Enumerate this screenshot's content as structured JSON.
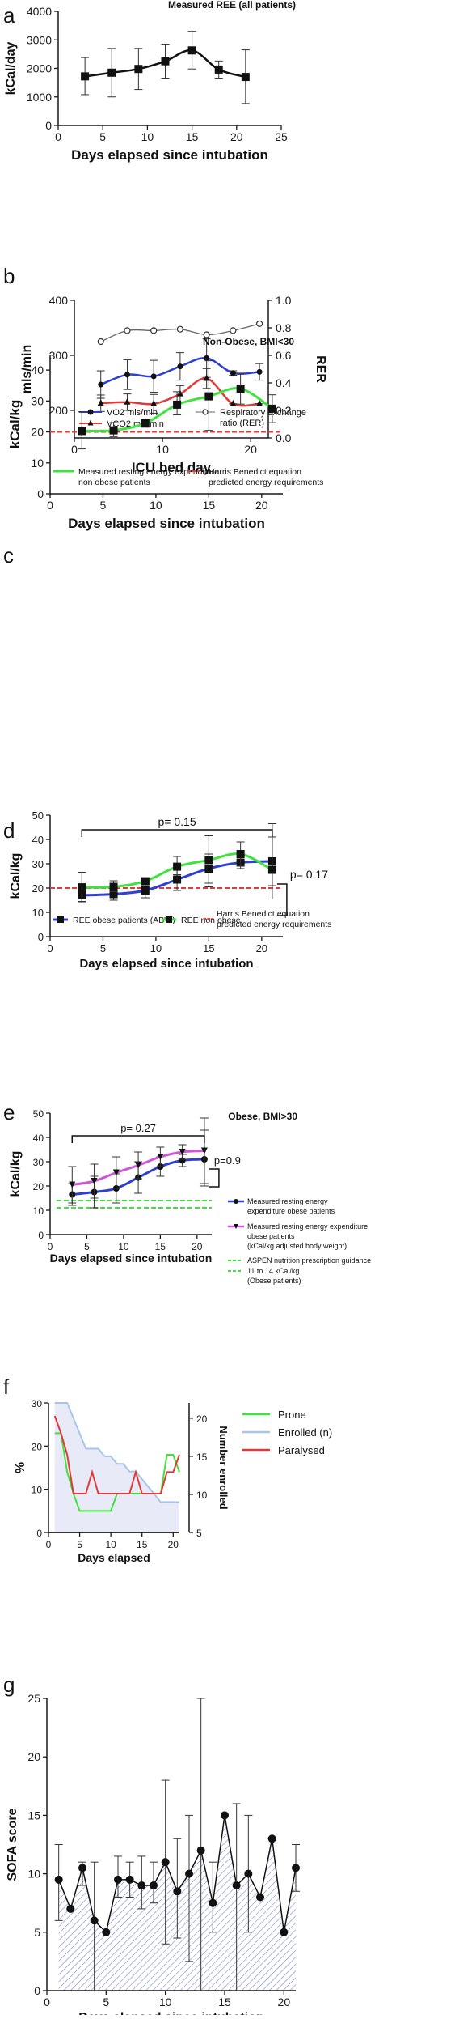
{
  "colors": {
    "black": "#1a1a1a",
    "blue": "#2f3fcf",
    "red": "#e03a3a",
    "green": "#3fe23f",
    "magenta": "#cf56d9",
    "gray": "#666666",
    "lightblue": "#a9c4ea",
    "fill": "#e8ebf7",
    "hatch": "#7d86c9"
  },
  "chart_data": [
    {
      "panel": "a",
      "type": "line",
      "title": "Measured REE (all patients)",
      "xlabel": "Days elapsed since intubation",
      "ylabel": "kCal/day",
      "xlim": [
        0,
        25
      ],
      "ylim": [
        0,
        4000
      ],
      "xticks": [
        "0",
        "5",
        "10",
        "15",
        "20",
        "25"
      ],
      "yticks": [
        "0",
        "1000",
        "2000",
        "3000",
        "4000"
      ],
      "series": [
        {
          "x": [
            3,
            6,
            9,
            12,
            15,
            18,
            21
          ],
          "values": [
            1720,
            1850,
            1980,
            2250,
            2630,
            1960,
            1700
          ],
          "err_low": [
            1080,
            1000,
            1260,
            1660,
            1980,
            1660,
            770
          ],
          "err_high": [
            2380,
            2700,
            2700,
            2850,
            3300,
            2260,
            2650
          ]
        }
      ]
    },
    {
      "panel": "b",
      "type": "line",
      "title": "",
      "xlabel": "ICU bed day",
      "ylabel": "mls/min",
      "y2label": "RER",
      "xlim": [
        0,
        22
      ],
      "ylim": [
        150,
        400
      ],
      "y2lim": [
        0.0,
        1.0
      ],
      "xticks": [
        "0",
        "10",
        "20"
      ],
      "yticks": [
        "200",
        "300",
        "400"
      ],
      "y2ticks": [
        "0.0",
        "0.2",
        "0.4",
        "0.6",
        "0.8",
        "1.0"
      ],
      "legend": [
        "VO2 mls/min",
        "VCO2 mls/min",
        "Respiratory exchange ratio (RER)"
      ],
      "series": [
        {
          "name": "VO2 mls/min",
          "x": [
            3,
            6,
            9,
            12,
            15,
            18,
            21
          ],
          "values": [
            247,
            265,
            262,
            280,
            295,
            268,
            270
          ],
          "err_low": [
            222,
            238,
            233,
            255,
            260,
            264,
            255
          ],
          "err_high": [
            272,
            292,
            291,
            305,
            330,
            272,
            285
          ]
        },
        {
          "name": "VCO2 mls/min",
          "x": [
            3,
            6,
            9,
            12,
            15,
            18,
            21
          ],
          "values": [
            213,
            215,
            212,
            230,
            258,
            212,
            212
          ],
          "err_low": [
            198,
            200,
            195,
            215,
            240,
            212,
            212
          ],
          "err_high": [
            228,
            230,
            229,
            245,
            276,
            212,
            212
          ]
        },
        {
          "name": "Respiratory exchange ratio (RER)",
          "x": [
            3,
            6,
            9,
            12,
            15,
            18,
            21
          ],
          "values": [
            0.7,
            0.78,
            0.78,
            0.79,
            0.75,
            0.78,
            0.83
          ]
        }
      ]
    },
    {
      "panel": "c",
      "type": "line",
      "title": "Non-Obese, BMI<30",
      "xlabel": "Days elapsed since intubation",
      "ylabel": "kCal/kg",
      "xlim": [
        0,
        22
      ],
      "ylim": [
        0,
        45
      ],
      "xticks": [
        "0",
        "5",
        "10",
        "15",
        "20"
      ],
      "yticks": [
        "0",
        "10",
        "20",
        "30",
        "40"
      ],
      "legend": [
        "Measured resting energy expenditure non obese patients",
        "Harris Benedict equation predicted energy requirements"
      ],
      "reference_line": 20,
      "series": [
        {
          "name": "Measured resting energy expenditure non obese patients",
          "x": [
            3,
            6,
            9,
            12,
            15,
            18,
            21
          ],
          "values": [
            20.3,
            20.5,
            22.8,
            28.8,
            31.5,
            34,
            27.5
          ],
          "err_low": [
            14.5,
            18.5,
            21.5,
            25.5,
            20.5,
            29,
            23
          ],
          "err_high": [
            26.5,
            23,
            24,
            33,
            43,
            39,
            32
          ]
        }
      ]
    },
    {
      "panel": "d",
      "type": "line",
      "title": "",
      "xlabel": "Days elapsed since intubation",
      "ylabel": "kCal/kg",
      "xlim": [
        0,
        22
      ],
      "ylim": [
        0,
        50
      ],
      "xticks": [
        "0",
        "5",
        "10",
        "15",
        "20"
      ],
      "yticks": [
        "0",
        "10",
        "20",
        "30",
        "40",
        "50"
      ],
      "annotations": [
        "p= 0.15",
        "p= 0.17"
      ],
      "legend": [
        "REE obese patients (ABW)",
        "REE non obese",
        "Harris Benedict equation predicted energy requirements"
      ],
      "reference_line": 20,
      "series": [
        {
          "name": "REE obese patients (ABW)",
          "x": [
            3,
            6,
            9,
            12,
            15,
            18,
            21
          ],
          "values": [
            17,
            17.5,
            19,
            23.5,
            28,
            30.5,
            31
          ],
          "err_low": [
            14,
            15,
            16,
            19,
            22,
            28,
            21
          ],
          "err_high": [
            21,
            21,
            22,
            28,
            34,
            33,
            41
          ]
        },
        {
          "name": "REE non obese",
          "x": [
            3,
            6,
            9,
            12,
            15,
            18,
            21
          ],
          "values": [
            20.3,
            20.5,
            22.8,
            28.8,
            31.5,
            34,
            27.5
          ],
          "err_low": [
            14.5,
            18.5,
            21.5,
            25.5,
            20.5,
            29,
            15.5
          ],
          "err_high": [
            26.5,
            23,
            24,
            33,
            41.5,
            39,
            46.5
          ]
        }
      ]
    },
    {
      "panel": "e",
      "type": "line",
      "title": "Obese, BMI>30",
      "xlabel": "Days elapsed since intubation",
      "ylabel": "kCal/kg",
      "xlim": [
        0,
        22
      ],
      "ylim": [
        0,
        50
      ],
      "xticks": [
        "0",
        "5",
        "10",
        "15",
        "20"
      ],
      "yticks": [
        "0",
        "10",
        "20",
        "30",
        "40",
        "50"
      ],
      "annotations": [
        "p= 0.27",
        "p=0.9"
      ],
      "legend": [
        "Measured resting energy expenditure obese patients",
        "Measured resting energy expenditure obese patients (kCal/kg adjusted body weight)",
        "ASPEN nutrition prescription guidance",
        "11 to 14 kCal/kg (Obese patients)"
      ],
      "reference_lines": [
        11,
        14
      ],
      "series": [
        {
          "name": "Measured resting energy expenditure obese patients",
          "x": [
            3,
            6,
            9,
            12,
            15,
            18,
            21
          ],
          "values": [
            16.5,
            17.5,
            19,
            23.5,
            28,
            30.5,
            31
          ],
          "err_low": [
            12,
            11,
            13,
            17,
            24,
            28,
            20
          ],
          "err_high": [
            21,
            24,
            25,
            30,
            32,
            33,
            43
          ]
        },
        {
          "name": "Measured resting energy expenditure obese patients (kCal/kg adjusted body weight)",
          "x": [
            3,
            6,
            9,
            12,
            15,
            18,
            21
          ],
          "values": [
            20.5,
            22,
            25.5,
            28.5,
            32,
            34,
            34.5
          ],
          "err_low": [
            13,
            15,
            19,
            23,
            28,
            31,
            21
          ],
          "err_high": [
            28,
            29,
            32,
            34,
            36,
            37,
            48
          ]
        }
      ]
    },
    {
      "panel": "f",
      "type": "line",
      "title": "",
      "xlabel": "Days elapsed",
      "ylabel": "%",
      "y2label": "Number enrolled",
      "xlim": [
        0,
        21
      ],
      "ylim": [
        0,
        30
      ],
      "y2lim": [
        5,
        22
      ],
      "xticks": [
        "0",
        "5",
        "10",
        "15",
        "20"
      ],
      "yticks": [
        "0",
        "10",
        "20",
        "30"
      ],
      "y2ticks": [
        "5",
        "10",
        "15",
        "20"
      ],
      "legend": [
        "Prone",
        "Enrolled (n)",
        "Paralysed"
      ],
      "series": [
        {
          "name": "Prone",
          "x": [
            1,
            2,
            3,
            4,
            5,
            6,
            7,
            8,
            9,
            10,
            11,
            12,
            13,
            14,
            15,
            16,
            17,
            18,
            19,
            20,
            21
          ],
          "values": [
            23,
            23,
            14,
            9,
            5,
            5,
            5,
            5,
            5,
            5,
            9,
            9,
            9,
            9,
            9,
            9,
            9,
            9,
            18,
            18,
            14
          ]
        },
        {
          "name": "Enrolled (n)",
          "x": [
            1,
            2,
            3,
            4,
            5,
            6,
            7,
            8,
            9,
            10,
            11,
            12,
            13,
            14,
            15,
            16,
            17,
            18,
            19,
            20,
            21
          ],
          "values": [
            22,
            22,
            22,
            20,
            18,
            16,
            16,
            16,
            15,
            15,
            14,
            14,
            13,
            13,
            12,
            11,
            10,
            9,
            9,
            9,
            9
          ]
        },
        {
          "name": "Paralysed",
          "x": [
            1,
            2,
            3,
            4,
            5,
            6,
            7,
            8,
            9,
            10,
            11,
            12,
            13,
            14,
            15,
            16,
            17,
            18,
            19,
            20,
            21
          ],
          "values": [
            27,
            23,
            18,
            9,
            9,
            9,
            14,
            9,
            9,
            9,
            9,
            9,
            9,
            14,
            9,
            9,
            9,
            9,
            14,
            14,
            18
          ]
        }
      ]
    },
    {
      "panel": "g",
      "type": "area",
      "title": "",
      "xlabel": "Days elapsed since intubation",
      "ylabel": "SOFA score",
      "xlim": [
        0,
        21
      ],
      "ylim": [
        0,
        25
      ],
      "xticks": [
        "0",
        "5",
        "10",
        "15",
        "20"
      ],
      "yticks": [
        "0",
        "5",
        "10",
        "15",
        "20",
        "25"
      ],
      "series": [
        {
          "x": [
            1,
            2,
            3,
            4,
            5,
            6,
            7,
            8,
            9,
            10,
            11,
            12,
            13,
            14,
            15,
            16,
            17,
            18,
            19,
            20,
            21
          ],
          "values": [
            9.5,
            7,
            10.5,
            6,
            5,
            9.5,
            9.5,
            9,
            9,
            11,
            8.5,
            10,
            12,
            7.5,
            15,
            9,
            10,
            8,
            13,
            5,
            10.5
          ],
          "err_low": [
            6,
            7,
            9,
            0,
            5,
            8,
            8,
            7,
            7.5,
            4,
            4.5,
            2.5,
            0,
            5,
            15,
            0,
            5,
            8,
            13,
            5,
            8.5
          ],
          "err_high": [
            12.5,
            7,
            11,
            11,
            5,
            11.5,
            11,
            11.5,
            11,
            18,
            13,
            15,
            25,
            11,
            15,
            16,
            15,
            8,
            13,
            5,
            12.5
          ]
        }
      ]
    }
  ],
  "panel_letters": [
    "a",
    "b",
    "c",
    "d",
    "e",
    "f",
    "g"
  ]
}
